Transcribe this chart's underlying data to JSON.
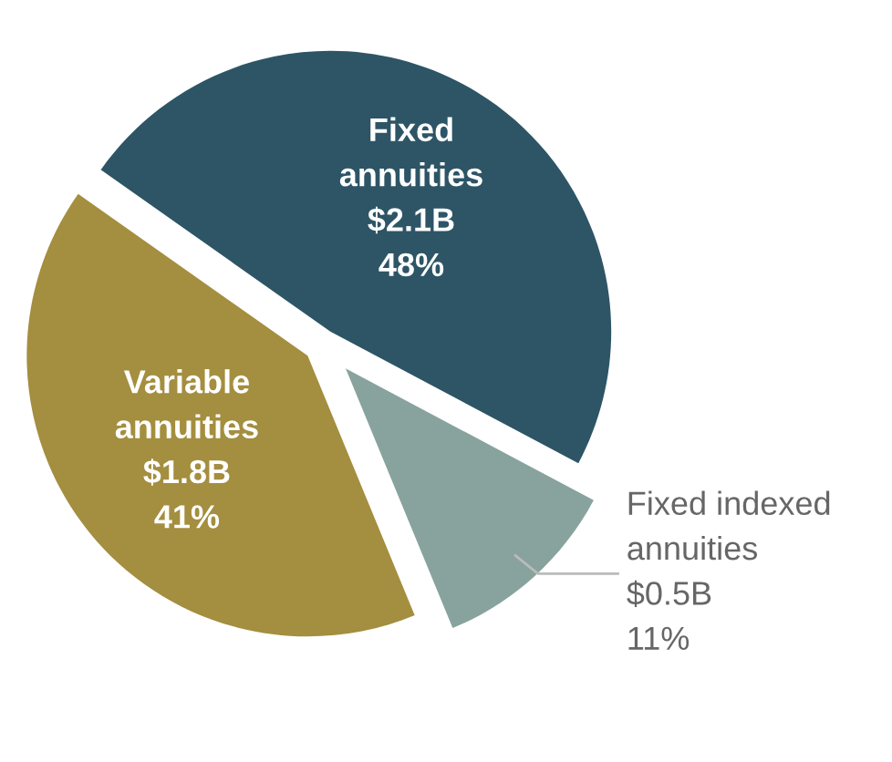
{
  "chart_data": {
    "type": "pie",
    "categories": [
      "Fixed\nannuities",
      "Variable\nannuities",
      "Fixed indexed\nannuities"
    ],
    "values": [
      48,
      41,
      11
    ],
    "value_labels": [
      "$2.1B\n48%",
      "$1.8B\n41%",
      "$0.5B\n11%"
    ],
    "colors": [
      "#2d5566",
      "#a48e3f",
      "#88a39d"
    ],
    "legend": false
  }
}
